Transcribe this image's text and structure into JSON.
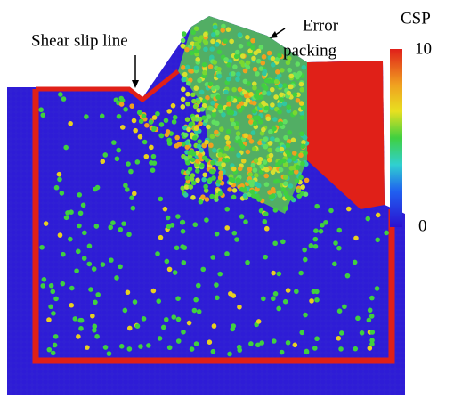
{
  "annotations": {
    "shear_slip_line": "Shear slip line",
    "error_packing": [
      "Error",
      "packing"
    ]
  },
  "colorbar": {
    "title": "CSP",
    "max_label": "10",
    "min_label": "0"
  }
}
